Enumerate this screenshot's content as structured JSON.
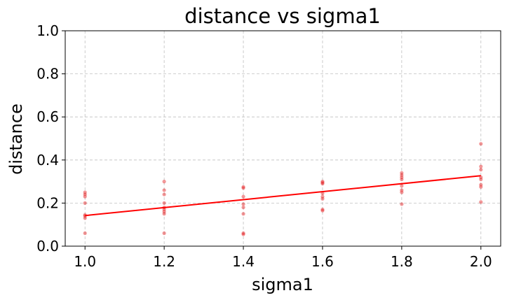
{
  "chart_data": {
    "type": "scatter",
    "title": "distance vs sigma1",
    "xlabel": "sigma1",
    "ylabel": "distance",
    "xlim": [
      0.95,
      2.05
    ],
    "ylim": [
      0.0,
      1.0
    ],
    "xticks": [
      "1.0",
      "1.2",
      "1.4",
      "1.6",
      "1.8",
      "2.0"
    ],
    "yticks": [
      "0.0",
      "0.2",
      "0.4",
      "0.6",
      "0.8",
      "1.0"
    ],
    "grid": true,
    "point_color": "#e41a1c",
    "trend_color": "#ff0000",
    "points": [
      {
        "x": 1.0,
        "y": 0.06
      },
      {
        "x": 1.0,
        "y": 0.13
      },
      {
        "x": 1.0,
        "y": 0.14
      },
      {
        "x": 1.0,
        "y": 0.145
      },
      {
        "x": 1.0,
        "y": 0.2
      },
      {
        "x": 1.0,
        "y": 0.23
      },
      {
        "x": 1.0,
        "y": 0.24
      },
      {
        "x": 1.0,
        "y": 0.25
      },
      {
        "x": 1.2,
        "y": 0.06
      },
      {
        "x": 1.2,
        "y": 0.15
      },
      {
        "x": 1.2,
        "y": 0.16
      },
      {
        "x": 1.2,
        "y": 0.17
      },
      {
        "x": 1.2,
        "y": 0.18
      },
      {
        "x": 1.2,
        "y": 0.2
      },
      {
        "x": 1.2,
        "y": 0.24
      },
      {
        "x": 1.2,
        "y": 0.26
      },
      {
        "x": 1.2,
        "y": 0.3
      },
      {
        "x": 1.4,
        "y": 0.055
      },
      {
        "x": 1.4,
        "y": 0.06
      },
      {
        "x": 1.4,
        "y": 0.15
      },
      {
        "x": 1.4,
        "y": 0.18
      },
      {
        "x": 1.4,
        "y": 0.195
      },
      {
        "x": 1.4,
        "y": 0.23
      },
      {
        "x": 1.4,
        "y": 0.27
      },
      {
        "x": 1.4,
        "y": 0.275
      },
      {
        "x": 1.6,
        "y": 0.165
      },
      {
        "x": 1.6,
        "y": 0.17
      },
      {
        "x": 1.6,
        "y": 0.22
      },
      {
        "x": 1.6,
        "y": 0.23
      },
      {
        "x": 1.6,
        "y": 0.245
      },
      {
        "x": 1.6,
        "y": 0.29
      },
      {
        "x": 1.6,
        "y": 0.295
      },
      {
        "x": 1.6,
        "y": 0.3
      },
      {
        "x": 1.8,
        "y": 0.195
      },
      {
        "x": 1.8,
        "y": 0.25
      },
      {
        "x": 1.8,
        "y": 0.26
      },
      {
        "x": 1.8,
        "y": 0.28
      },
      {
        "x": 1.8,
        "y": 0.31
      },
      {
        "x": 1.8,
        "y": 0.32
      },
      {
        "x": 1.8,
        "y": 0.33
      },
      {
        "x": 1.8,
        "y": 0.34
      },
      {
        "x": 2.0,
        "y": 0.205
      },
      {
        "x": 2.0,
        "y": 0.275
      },
      {
        "x": 2.0,
        "y": 0.285
      },
      {
        "x": 2.0,
        "y": 0.31
      },
      {
        "x": 2.0,
        "y": 0.32
      },
      {
        "x": 2.0,
        "y": 0.355
      },
      {
        "x": 2.0,
        "y": 0.37
      },
      {
        "x": 2.0,
        "y": 0.475
      }
    ],
    "trend_line": {
      "x": [
        1.0,
        2.0
      ],
      "y": [
        0.142,
        0.327
      ]
    }
  }
}
